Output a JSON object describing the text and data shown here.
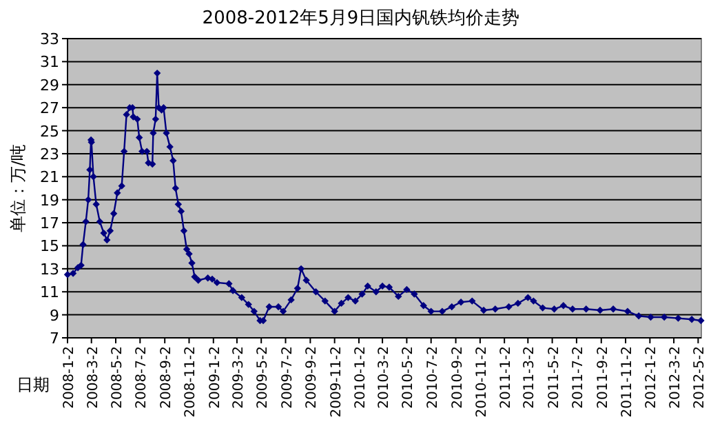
{
  "chart_data": {
    "type": "line",
    "title": "2008-2012年5月9日国内钒铁均价走势",
    "xlabel": "日期",
    "ylabel": "单位：万/吨",
    "x": [
      "2008-01-02",
      "2008-01-16",
      "2008-01-28",
      "2008-02-05",
      "2008-02-10",
      "2008-02-17",
      "2008-02-23",
      "2008-02-27",
      "2008-03-01",
      "2008-03-02",
      "2008-03-07",
      "2008-03-14",
      "2008-03-23",
      "2008-04-02",
      "2008-04-10",
      "2008-04-18",
      "2008-04-27",
      "2008-05-06",
      "2008-05-17",
      "2008-05-23",
      "2008-05-29",
      "2008-06-06",
      "2008-06-13",
      "2008-06-15",
      "2008-06-25",
      "2008-06-30",
      "2008-07-07",
      "2008-07-19",
      "2008-07-23",
      "2008-08-02",
      "2008-08-04",
      "2008-08-10",
      "2008-08-14",
      "2008-08-18",
      "2008-08-25",
      "2008-08-30",
      "2008-09-06",
      "2008-09-15",
      "2008-09-23",
      "2008-09-29",
      "2008-10-06",
      "2008-10-13",
      "2008-10-20",
      "2008-10-27",
      "2008-11-02",
      "2008-11-09",
      "2008-11-16",
      "2008-11-25",
      "2008-12-19",
      "2008-12-30",
      "2009-01-11",
      "2009-02-10",
      "2009-02-20",
      "2009-03-14",
      "2009-03-31",
      "2009-04-14",
      "2009-04-29",
      "2009-05-07",
      "2009-05-22",
      "2009-06-14",
      "2009-06-26",
      "2009-07-16",
      "2009-08-01",
      "2009-08-10",
      "2009-08-23",
      "2009-09-16",
      "2009-10-09",
      "2009-11-02",
      "2009-11-19",
      "2009-12-06",
      "2009-12-24",
      "2010-01-10",
      "2010-01-24",
      "2010-02-14",
      "2010-03-02",
      "2010-03-19",
      "2010-04-11",
      "2010-05-02",
      "2010-05-21",
      "2010-06-13",
      "2010-07-02",
      "2010-07-30",
      "2010-08-23",
      "2010-09-15",
      "2010-10-13",
      "2010-11-11",
      "2010-12-10",
      "2011-01-13",
      "2011-02-05",
      "2011-03-02",
      "2011-03-16",
      "2011-04-08",
      "2011-05-07",
      "2011-05-30",
      "2011-06-22",
      "2011-07-26",
      "2011-08-30",
      "2011-10-02",
      "2011-11-07",
      "2011-12-05",
      "2012-01-04",
      "2012-02-07",
      "2012-03-13",
      "2012-04-16",
      "2012-05-09"
    ],
    "values": [
      12.5,
      12.6,
      13.1,
      13.3,
      15.1,
      17.1,
      19,
      21.6,
      24.2,
      24,
      21,
      18.6,
      17.1,
      16.1,
      15.5,
      16.3,
      17.8,
      19.6,
      20.2,
      23.2,
      26.4,
      27,
      27,
      26.2,
      26,
      24.4,
      23.2,
      23.2,
      22.2,
      22.1,
      24.8,
      26,
      30,
      27,
      26.8,
      27,
      24.8,
      23.6,
      22.4,
      20,
      18.6,
      18,
      16.3,
      14.7,
      14.3,
      13.5,
      12.3,
      12,
      12.2,
      12.1,
      11.8,
      11.7,
      11.1,
      10.5,
      9.9,
      9.3,
      8.5,
      8.5,
      9.7,
      9.7,
      9.3,
      10.3,
      11.3,
      13,
      12,
      11,
      10.2,
      9.3,
      10,
      10.5,
      10.2,
      10.8,
      11.5,
      11,
      11.5,
      11.4,
      10.6,
      11.2,
      10.8,
      9.8,
      9.3,
      9.3,
      9.7,
      10.1,
      10.2,
      9.4,
      9.5,
      9.7,
      10,
      10.5,
      10.2,
      9.6,
      9.5,
      9.8,
      9.5,
      9.5,
      9.4,
      9.5,
      9.3,
      8.9,
      8.8,
      8.8,
      8.7,
      8.6,
      8.5
    ],
    "color": "#000080",
    "marker": "diamond",
    "grid": "y",
    "xlim": [
      "2008-01-02",
      "2012-05-10"
    ],
    "xticks": [
      {
        "value": "2008-01-02",
        "label": "2008-1-2"
      },
      {
        "value": "2008-03-02",
        "label": "2008-3-2"
      },
      {
        "value": "2008-05-02",
        "label": "2008-5-2"
      },
      {
        "value": "2008-07-02",
        "label": "2008-7-2"
      },
      {
        "value": "2008-09-02",
        "label": "2008-9-2"
      },
      {
        "value": "2008-11-02",
        "label": "2008-11-2"
      },
      {
        "value": "2009-01-02",
        "label": "2009-1-2"
      },
      {
        "value": "2009-03-02",
        "label": "2009-3-2"
      },
      {
        "value": "2009-05-02",
        "label": "2009-5-2"
      },
      {
        "value": "2009-07-02",
        "label": "2009-7-2"
      },
      {
        "value": "2009-09-02",
        "label": "2009-9-2"
      },
      {
        "value": "2009-11-02",
        "label": "2009-11-2"
      },
      {
        "value": "2010-01-02",
        "label": "2010-1-2"
      },
      {
        "value": "2010-03-02",
        "label": "2010-3-2"
      },
      {
        "value": "2010-05-02",
        "label": "2010-5-2"
      },
      {
        "value": "2010-07-02",
        "label": "2010-7-2"
      },
      {
        "value": "2010-09-02",
        "label": "2010-9-2"
      },
      {
        "value": "2010-11-02",
        "label": "2010-11-2"
      },
      {
        "value": "2011-01-02",
        "label": "2011-1-2"
      },
      {
        "value": "2011-03-02",
        "label": "2011-3-2"
      },
      {
        "value": "2011-05-02",
        "label": "2011-5-2"
      },
      {
        "value": "2011-07-02",
        "label": "2011-7-2"
      },
      {
        "value": "2011-09-02",
        "label": "2011-9-2"
      },
      {
        "value": "2011-11-02",
        "label": "2011-11-2"
      },
      {
        "value": "2012-01-02",
        "label": "2012-1-2"
      },
      {
        "value": "2012-03-02",
        "label": "2012-3-2"
      },
      {
        "value": "2012-05-02",
        "label": "2012-5-2"
      }
    ],
    "ylim": [
      7,
      33
    ],
    "yticks": [
      7,
      9,
      11,
      13,
      15,
      17,
      19,
      21,
      23,
      25,
      27,
      29,
      31,
      33
    ]
  }
}
